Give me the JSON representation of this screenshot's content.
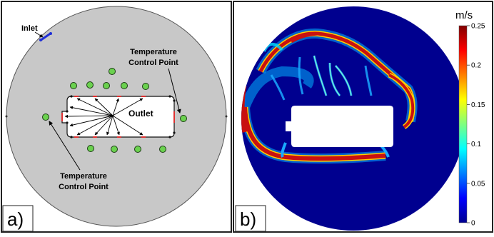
{
  "panel_a": {
    "letter": "a)",
    "inlet_label": "Inlet",
    "outlet_label": "Outlet",
    "temp_point_label_line1": "Temperature",
    "temp_point_label_line2": "Control Point",
    "colors": {
      "domain_fill": "#c8c8c8",
      "control_point_fill": "#6bd14f",
      "inlet_color": "#1f2fd6",
      "outlet_marker": "#e03030"
    }
  },
  "panel_b": {
    "letter": "b)",
    "colorbar": {
      "unit": "m/s",
      "ticks": [
        "0.25",
        "0.2",
        "0.15",
        "0.1",
        "0.05",
        "0"
      ],
      "min": 0,
      "max": 0.25,
      "colormap": "jet"
    },
    "colors": {
      "background_flow": "#00008f",
      "cutout": "#ffffff"
    }
  }
}
